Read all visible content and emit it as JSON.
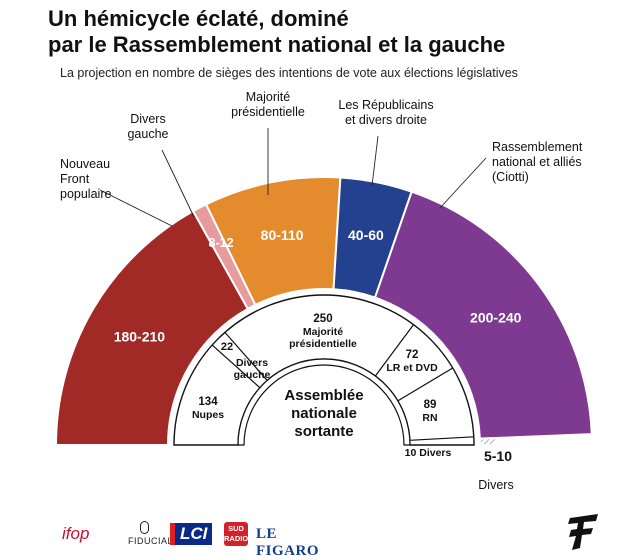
{
  "header": {
    "title_line1": "Un hémicycle éclaté, dominé",
    "title_line2": "par le Rassemblement national et la gauche",
    "subtitle": "La projection en nombre de sièges des intentions de vote aux élections législatives"
  },
  "chart_data": [
    {
      "type": "pie",
      "variant": "hemicycle",
      "series_name": "Projection",
      "slices": [
        {
          "label": "Nouveau Front populaire",
          "value_label": "180-210",
          "min": 180,
          "max": 210,
          "color": "#a12a26"
        },
        {
          "label": "Divers gauche",
          "value_label": "8-12",
          "min": 8,
          "max": 12,
          "color": "#e79b9c"
        },
        {
          "label": "Majorité présidentielle",
          "value_label": "80-110",
          "min": 80,
          "max": 110,
          "color": "#e48b2e"
        },
        {
          "label": "Les Républicains et divers droite",
          "value_label": "40-60",
          "min": 40,
          "max": 60,
          "color": "#23418f"
        },
        {
          "label": "Rassemblement national et alliés (Ciotti)",
          "value_label": "200-240",
          "min": 200,
          "max": 240,
          "color": "#7d3a90"
        },
        {
          "label": "Divers",
          "value_label": "5-10",
          "min": 5,
          "max": 10,
          "color": "#bdbdbd"
        }
      ]
    },
    {
      "type": "pie",
      "variant": "hemicycle",
      "title": "Assemblée nationale sortante",
      "slices": [
        {
          "label": "Nupes",
          "value": 134
        },
        {
          "label": "Divers gauche",
          "value": 22
        },
        {
          "label": "Majorité présidentielle",
          "value": 250
        },
        {
          "label": "LR et DVD",
          "value": 72
        },
        {
          "label": "RN",
          "value": 89
        },
        {
          "label": "Divers",
          "value": 10
        }
      ]
    }
  ],
  "logos": {
    "ifop": "ifop",
    "fiducial": "FIDUCIAL",
    "lci": "LCI",
    "sud_radio_1": "SUD",
    "sud_radio_2": "RADIO",
    "figaro": "LE FIGARO"
  }
}
